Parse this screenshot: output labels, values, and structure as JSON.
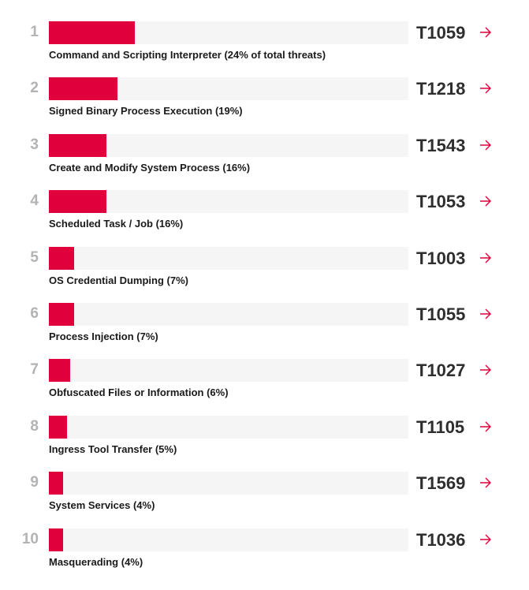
{
  "chart_data": {
    "type": "bar",
    "orientation": "horizontal",
    "xlim": [
      0,
      100
    ],
    "accent_color": "#e0003c",
    "track_color": "#f5f5f5",
    "arrow_icon": "arrow-right-icon",
    "rows": [
      {
        "rank": "1",
        "label": "Command and Scripting Interpreter (24% of total threats)",
        "value": 24,
        "technique": "T1059"
      },
      {
        "rank": "2",
        "label": "Signed Binary Process Execution (19%)",
        "value": 19,
        "technique": "T1218"
      },
      {
        "rank": "3",
        "label": "Create and Modify System Process (16%)",
        "value": 16,
        "technique": "T1543"
      },
      {
        "rank": "4",
        "label": "Scheduled Task / Job (16%)",
        "value": 16,
        "technique": "T1053"
      },
      {
        "rank": "5",
        "label": "OS Credential Dumping (7%)",
        "value": 7,
        "technique": "T1003"
      },
      {
        "rank": "6",
        "label": "Process Injection (7%)",
        "value": 7,
        "technique": "T1055"
      },
      {
        "rank": "7",
        "label": "Obfuscated Files or Information (6%)",
        "value": 6,
        "technique": "T1027"
      },
      {
        "rank": "8",
        "label": "Ingress Tool Transfer (5%)",
        "value": 5,
        "technique": "T1105"
      },
      {
        "rank": "9",
        "label": "System Services (4%)",
        "value": 4,
        "technique": "T1569"
      },
      {
        "rank": "10",
        "label": "Masquerading (4%)",
        "value": 4,
        "technique": "T1036"
      }
    ]
  }
}
